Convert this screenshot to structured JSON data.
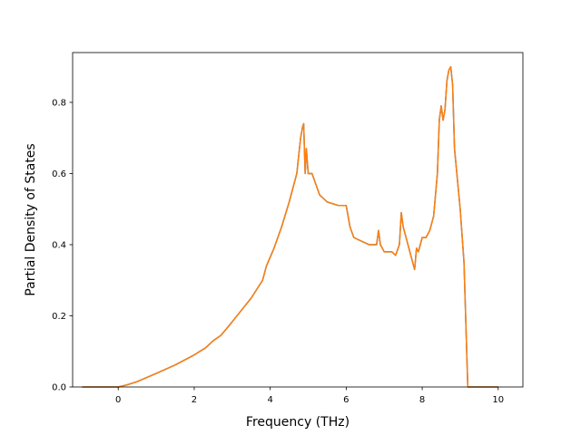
{
  "chart_data": {
    "type": "line",
    "title": "",
    "xlabel": "Frequency (THz)",
    "ylabel": "Partial Density of States",
    "xlim": [
      -1.2,
      10.65
    ],
    "ylim": [
      0.0,
      0.94
    ],
    "xticks": [
      0,
      2,
      4,
      6,
      8,
      10
    ],
    "yticks": [
      0.0,
      0.2,
      0.4,
      0.6,
      0.8
    ],
    "xtick_labels": [
      "0",
      "2",
      "4",
      "6",
      "8",
      "10"
    ],
    "ytick_labels": [
      "0.0",
      "0.2",
      "0.4",
      "0.6",
      "0.8"
    ],
    "grid": false,
    "legend": "none",
    "series": [
      {
        "color": "#1f77b4",
        "x": [
          -0.95,
          0.0,
          0.2,
          0.5,
          1.0,
          1.5,
          2.0,
          2.3,
          2.5,
          2.7,
          2.9,
          3.2,
          3.5,
          3.8,
          3.9,
          4.1,
          4.3,
          4.5,
          4.7,
          4.8,
          4.85,
          4.88,
          4.92,
          4.95,
          5.0,
          5.1,
          5.3,
          5.5,
          5.8,
          6.0,
          6.1,
          6.2,
          6.4,
          6.6,
          6.7,
          6.8,
          6.85,
          6.9,
          7.0,
          7.2,
          7.3,
          7.4,
          7.45,
          7.5,
          7.6,
          7.7,
          7.8,
          7.85,
          7.9,
          8.0,
          8.1,
          8.2,
          8.3,
          8.4,
          8.45,
          8.5,
          8.55,
          8.6,
          8.65,
          8.7,
          8.75,
          8.8,
          8.85,
          9.0,
          9.1,
          9.2,
          10.0
        ],
        "y": [
          0.0,
          0.0,
          0.005,
          0.015,
          0.038,
          0.062,
          0.09,
          0.11,
          0.13,
          0.145,
          0.17,
          0.21,
          0.25,
          0.3,
          0.34,
          0.39,
          0.45,
          0.52,
          0.6,
          0.7,
          0.73,
          0.74,
          0.6,
          0.67,
          0.6,
          0.6,
          0.54,
          0.52,
          0.51,
          0.51,
          0.45,
          0.42,
          0.41,
          0.4,
          0.4,
          0.4,
          0.44,
          0.4,
          0.38,
          0.38,
          0.37,
          0.4,
          0.49,
          0.45,
          0.41,
          0.37,
          0.33,
          0.39,
          0.38,
          0.42,
          0.42,
          0.44,
          0.48,
          0.6,
          0.75,
          0.79,
          0.75,
          0.78,
          0.86,
          0.89,
          0.9,
          0.85,
          0.67,
          0.5,
          0.35,
          0.0,
          0.0
        ]
      },
      {
        "color": "#ff7f0e",
        "x": [
          -0.95,
          0.0,
          0.2,
          0.5,
          1.0,
          1.5,
          2.0,
          2.3,
          2.5,
          2.7,
          2.9,
          3.2,
          3.5,
          3.8,
          3.9,
          4.1,
          4.3,
          4.5,
          4.7,
          4.8,
          4.85,
          4.88,
          4.92,
          4.95,
          5.0,
          5.1,
          5.3,
          5.5,
          5.8,
          6.0,
          6.1,
          6.2,
          6.4,
          6.6,
          6.7,
          6.8,
          6.85,
          6.9,
          7.0,
          7.2,
          7.3,
          7.4,
          7.45,
          7.5,
          7.6,
          7.7,
          7.8,
          7.85,
          7.9,
          8.0,
          8.1,
          8.2,
          8.3,
          8.4,
          8.45,
          8.5,
          8.55,
          8.6,
          8.65,
          8.7,
          8.75,
          8.8,
          8.85,
          9.0,
          9.1,
          9.2,
          10.0
        ],
        "y": [
          0.0,
          0.0,
          0.005,
          0.015,
          0.038,
          0.062,
          0.09,
          0.11,
          0.13,
          0.145,
          0.17,
          0.21,
          0.25,
          0.3,
          0.34,
          0.39,
          0.45,
          0.52,
          0.6,
          0.7,
          0.73,
          0.74,
          0.6,
          0.67,
          0.6,
          0.6,
          0.54,
          0.52,
          0.51,
          0.51,
          0.45,
          0.42,
          0.41,
          0.4,
          0.4,
          0.4,
          0.44,
          0.4,
          0.38,
          0.38,
          0.37,
          0.4,
          0.49,
          0.45,
          0.41,
          0.37,
          0.33,
          0.39,
          0.38,
          0.42,
          0.42,
          0.44,
          0.48,
          0.6,
          0.75,
          0.79,
          0.75,
          0.78,
          0.86,
          0.89,
          0.9,
          0.85,
          0.67,
          0.5,
          0.35,
          0.0,
          0.0
        ]
      }
    ]
  }
}
